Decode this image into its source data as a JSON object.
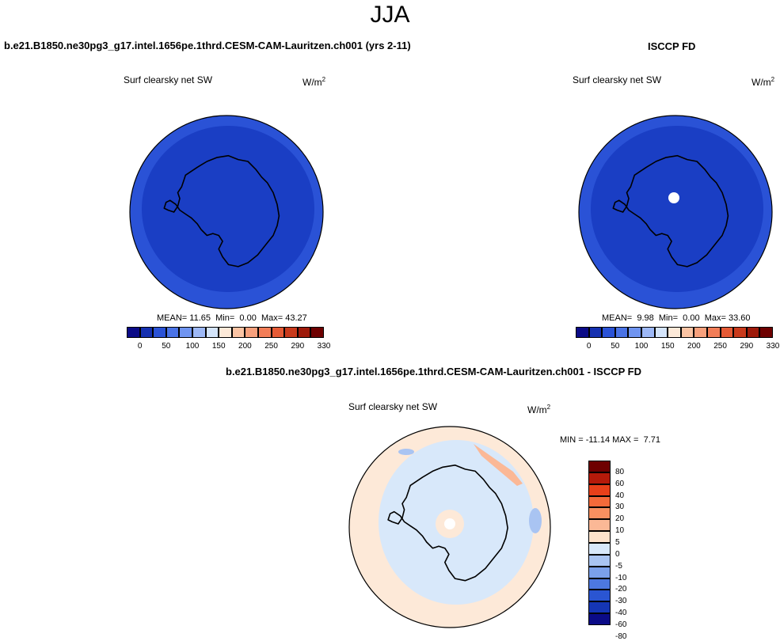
{
  "title": "JJA",
  "test_case": "b.e21.B1850.ne30pg3_g17.intel.1656pe.1thrd.CESM-CAM-Lauritzen.ch001 (yrs 2-11)",
  "obs_case": "ISCCP FD",
  "diff_case": "b.e21.B1850.ne30pg3_g17.intel.1656pe.1thrd.CESM-CAM-Lauritzen.ch001 - ISCCP FD",
  "variable": "Surf clearsky net SW",
  "units_base": "W/m",
  "units_exp": "2",
  "panels": {
    "model": {
      "mean_label": "MEAN=",
      "mean": "11.65",
      "min_label": "Min=",
      "min": "0.00",
      "max_label": "Max=",
      "max": "43.27"
    },
    "obs": {
      "mean_label": "MEAN=",
      "mean": "9.98",
      "min_label": "Min=",
      "min": "0.00",
      "max_label": "Max=",
      "max": "33.60"
    },
    "diff": {
      "min_label": "MIN =",
      "min": "-11.14",
      "max_label": "MAX =",
      "max": "7.71"
    }
  },
  "colorbar_abs": {
    "colors": [
      "#0b0b87",
      "#1530b0",
      "#2a52d6",
      "#4a73e6",
      "#6f94f0",
      "#9db8f6",
      "#d4e4fa",
      "#fde9d8",
      "#fbc4a4",
      "#f7a07c",
      "#f27d57",
      "#e55a35",
      "#c93a1c",
      "#9e1a0a",
      "#6e0000"
    ],
    "labels": [
      "0",
      "50",
      "100",
      "150",
      "200",
      "250",
      "290",
      "330"
    ]
  },
  "colorbar_diff": {
    "colors": [
      "#6e0000",
      "#b51a0a",
      "#e8401a",
      "#f46a3a",
      "#f89060",
      "#fbb896",
      "#fde3cc",
      "#d8e8fa",
      "#a9c4f2",
      "#7ba0ea",
      "#4d78e0",
      "#2a55d2",
      "#1536b5",
      "#0b0b87"
    ],
    "labels": [
      "80",
      "60",
      "40",
      "30",
      "20",
      "10",
      "5",
      "0",
      "-5",
      "-10",
      "-20",
      "-30",
      "-40",
      "-60",
      "-80"
    ]
  },
  "map_colors": {
    "outer": "#2a52d6",
    "inner": "#1a3ec4",
    "diff_base": "#fde9d8",
    "diff_blue": "#d8e8fa",
    "diff_blue2": "#a9c4f2",
    "diff_red": "#fbb896",
    "hole": "#ffffff"
  }
}
